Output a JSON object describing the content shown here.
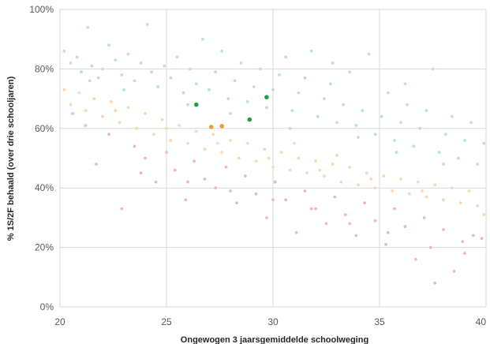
{
  "chart_data": {
    "type": "scatter",
    "title": "",
    "xlabel": "Ongewogen 3 jaarsgemiddelde schoolweging",
    "ylabel": "% 1S/2F behaald (over drie schooljaren)",
    "xlim": [
      20,
      40
    ],
    "ylim": [
      0,
      100
    ],
    "x_ticks": [
      "20",
      "25",
      "30",
      "35",
      "40"
    ],
    "y_ticks": [
      "0%",
      "20%",
      "40%",
      "60%",
      "80%",
      "100%"
    ],
    "grid": true,
    "legend": "none",
    "colors": {
      "above": "#bfe3c3",
      "expected": "#f7d9b5",
      "below": "#f4b6b8",
      "highlight_above": "#1e9e4a",
      "highlight_expected": "#f19a38"
    },
    "series": [
      {
        "color_key": "above",
        "points": [
          [
            20.2,
            86
          ],
          [
            20.5,
            82
          ],
          [
            20.8,
            84
          ],
          [
            21.0,
            79
          ],
          [
            21.3,
            94
          ],
          [
            21.5,
            81
          ],
          [
            21.8,
            77
          ],
          [
            22.0,
            80
          ],
          [
            22.3,
            88
          ],
          [
            22.6,
            83
          ],
          [
            22.9,
            78
          ],
          [
            23.2,
            85
          ],
          [
            23.5,
            76
          ],
          [
            23.8,
            82
          ],
          [
            24.1,
            95
          ],
          [
            24.3,
            79
          ],
          [
            24.6,
            74
          ],
          [
            24.9,
            81
          ],
          [
            25.2,
            77
          ],
          [
            25.5,
            84
          ],
          [
            25.8,
            72
          ],
          [
            26.1,
            80
          ],
          [
            26.4,
            75
          ],
          [
            26.7,
            90
          ],
          [
            27.0,
            73
          ],
          [
            27.3,
            79
          ],
          [
            27.6,
            86
          ],
          [
            27.9,
            70
          ],
          [
            28.2,
            76
          ],
          [
            28.5,
            82
          ],
          [
            28.8,
            69
          ],
          [
            29.1,
            74
          ],
          [
            29.4,
            80
          ],
          [
            29.7,
            67
          ],
          [
            30.0,
            73
          ],
          [
            30.3,
            78
          ],
          [
            30.6,
            84
          ],
          [
            30.9,
            66
          ],
          [
            31.2,
            72
          ],
          [
            31.5,
            77
          ],
          [
            31.8,
            86
          ],
          [
            32.1,
            64
          ],
          [
            32.4,
            70
          ],
          [
            32.7,
            75
          ],
          [
            33.0,
            62
          ],
          [
            33.3,
            68
          ],
          [
            33.6,
            79
          ],
          [
            33.9,
            61
          ],
          [
            34.2,
            66
          ],
          [
            34.5,
            85
          ],
          [
            34.8,
            58
          ],
          [
            35.1,
            64
          ],
          [
            35.4,
            72
          ],
          [
            35.7,
            56
          ],
          [
            36.0,
            62
          ],
          [
            36.3,
            68
          ],
          [
            36.6,
            54
          ],
          [
            36.9,
            60
          ],
          [
            37.2,
            66
          ],
          [
            37.5,
            80
          ],
          [
            37.8,
            52
          ],
          [
            38.1,
            58
          ],
          [
            38.4,
            64
          ],
          [
            38.7,
            50
          ],
          [
            39.0,
            56
          ],
          [
            39.3,
            62
          ],
          [
            39.6,
            48
          ],
          [
            39.9,
            55
          ],
          [
            32.8,
            82
          ],
          [
            36.2,
            75
          ],
          [
            28.0,
            65
          ],
          [
            30.8,
            60
          ],
          [
            34.0,
            57
          ],
          [
            26.0,
            68
          ],
          [
            23.0,
            73
          ],
          [
            21.4,
            76
          ],
          [
            38.0,
            48
          ],
          [
            35.8,
            52
          ]
        ]
      },
      {
        "color_key": "expected",
        "points": [
          [
            20.2,
            73
          ],
          [
            20.5,
            68
          ],
          [
            20.9,
            72
          ],
          [
            21.2,
            66
          ],
          [
            21.6,
            70
          ],
          [
            22.0,
            64
          ],
          [
            22.4,
            69
          ],
          [
            22.8,
            62
          ],
          [
            23.2,
            67
          ],
          [
            23.6,
            60
          ],
          [
            24.0,
            65
          ],
          [
            24.4,
            58
          ],
          [
            24.8,
            63
          ],
          [
            25.2,
            56
          ],
          [
            25.6,
            61
          ],
          [
            26.0,
            55
          ],
          [
            26.4,
            59
          ],
          [
            26.8,
            53
          ],
          [
            27.2,
            58
          ],
          [
            27.6,
            52
          ],
          [
            28.0,
            56
          ],
          [
            28.4,
            50
          ],
          [
            28.8,
            55
          ],
          [
            29.2,
            49
          ],
          [
            29.6,
            53
          ],
          [
            30.0,
            47
          ],
          [
            30.4,
            52
          ],
          [
            30.8,
            46
          ],
          [
            31.2,
            50
          ],
          [
            31.6,
            45
          ],
          [
            32.0,
            49
          ],
          [
            32.4,
            44
          ],
          [
            32.8,
            48
          ],
          [
            33.2,
            42
          ],
          [
            33.6,
            47
          ],
          [
            34.0,
            41
          ],
          [
            34.4,
            45
          ],
          [
            34.8,
            40
          ],
          [
            35.2,
            44
          ],
          [
            35.6,
            39
          ],
          [
            36.0,
            43
          ],
          [
            36.4,
            38
          ],
          [
            36.8,
            42
          ],
          [
            37.2,
            37
          ],
          [
            37.6,
            41
          ],
          [
            38.0,
            36
          ],
          [
            38.4,
            40
          ],
          [
            38.8,
            35
          ],
          [
            39.2,
            39
          ],
          [
            39.6,
            34
          ],
          [
            39.9,
            31
          ],
          [
            22.6,
            66
          ],
          [
            25.0,
            60
          ],
          [
            27.4,
            55
          ],
          [
            29.8,
            50
          ],
          [
            32.2,
            46
          ],
          [
            34.6,
            43
          ],
          [
            37.0,
            39
          ],
          [
            31.0,
            55
          ],
          [
            33.0,
            51
          ]
        ]
      },
      {
        "color_key": "below",
        "points": [
          [
            20.6,
            65
          ],
          [
            21.2,
            61
          ],
          [
            21.7,
            48
          ],
          [
            22.3,
            58
          ],
          [
            22.9,
            33
          ],
          [
            23.5,
            54
          ],
          [
            24.0,
            50
          ],
          [
            24.5,
            42
          ],
          [
            25.0,
            52
          ],
          [
            25.4,
            46
          ],
          [
            25.9,
            36
          ],
          [
            26.3,
            49
          ],
          [
            26.8,
            43
          ],
          [
            27.3,
            40
          ],
          [
            27.8,
            47
          ],
          [
            28.3,
            35
          ],
          [
            28.7,
            44
          ],
          [
            29.2,
            38
          ],
          [
            29.7,
            30
          ],
          [
            30.1,
            42
          ],
          [
            30.6,
            36
          ],
          [
            31.1,
            25
          ],
          [
            31.5,
            39
          ],
          [
            32.0,
            33
          ],
          [
            32.5,
            28
          ],
          [
            32.9,
            37
          ],
          [
            33.4,
            31
          ],
          [
            33.9,
            24
          ],
          [
            34.3,
            35
          ],
          [
            34.8,
            29
          ],
          [
            35.3,
            21
          ],
          [
            35.7,
            33
          ],
          [
            36.2,
            27
          ],
          [
            36.7,
            16
          ],
          [
            37.1,
            30
          ],
          [
            37.6,
            8
          ],
          [
            38.0,
            26
          ],
          [
            38.5,
            12
          ],
          [
            38.9,
            22
          ],
          [
            39.4,
            24
          ],
          [
            39.8,
            23
          ],
          [
            23.8,
            45
          ],
          [
            26.0,
            42
          ],
          [
            28.0,
            39
          ],
          [
            30.0,
            36
          ],
          [
            31.8,
            33
          ],
          [
            33.6,
            28
          ],
          [
            35.4,
            25
          ],
          [
            37.4,
            20
          ],
          [
            39.0,
            18
          ]
        ]
      },
      {
        "color_key": "highlight_above",
        "points": [
          [
            26.4,
            68
          ],
          [
            29.7,
            70.5
          ],
          [
            28.9,
            63
          ]
        ]
      },
      {
        "color_key": "highlight_expected",
        "points": [
          [
            27.1,
            60.5
          ],
          [
            27.6,
            60.8
          ]
        ]
      }
    ]
  }
}
